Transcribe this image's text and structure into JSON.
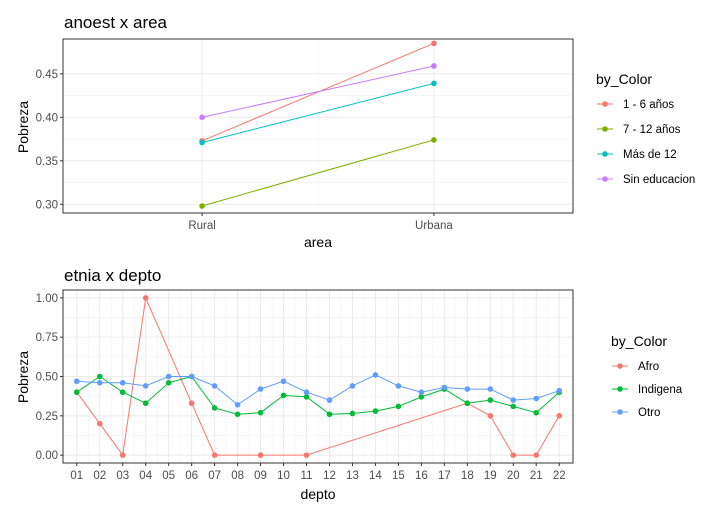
{
  "chart_data": [
    {
      "type": "line",
      "title": "anoest x area",
      "xlabel": "area",
      "ylabel": "Pobreza",
      "categories": [
        "Rural",
        "Urbana"
      ],
      "ylim": [
        0.29,
        0.49
      ],
      "yticks": [
        0.3,
        0.35,
        0.4,
        0.45
      ],
      "ytick_labels": [
        "0.30",
        "0.35",
        "0.40",
        "0.45"
      ],
      "grid": true,
      "legend_title": "by_Color",
      "legend_position": "right",
      "series": [
        {
          "name": "1 - 6 años",
          "color": "#F8766D",
          "values": [
            0.373,
            0.485
          ]
        },
        {
          "name": "7 - 12 años",
          "color": "#7CAE00",
          "values": [
            0.298,
            0.374
          ]
        },
        {
          "name": "Más de 12",
          "color": "#00BFC4",
          "values": [
            0.371,
            0.439
          ]
        },
        {
          "name": "Sin educacion",
          "color": "#C77CFF",
          "values": [
            0.4,
            0.459
          ]
        }
      ]
    },
    {
      "type": "line",
      "title": "etnia x depto",
      "xlabel": "depto",
      "ylabel": "Pobreza",
      "categories": [
        "01",
        "02",
        "03",
        "04",
        "05",
        "06",
        "07",
        "08",
        "09",
        "10",
        "11",
        "12",
        "13",
        "14",
        "15",
        "16",
        "17",
        "18",
        "19",
        "20",
        "21",
        "22"
      ],
      "ylim": [
        -0.05,
        1.05
      ],
      "yticks": [
        0,
        0.25,
        0.5,
        0.75,
        1
      ],
      "ytick_labels": [
        "0.00",
        "0.25",
        "0.50",
        "0.75",
        "1.00"
      ],
      "grid": true,
      "legend_title": "by_Color",
      "legend_position": "right",
      "series": [
        {
          "name": "Afro",
          "color": "#F8766D",
          "points": [
            [
              1,
              0.4
            ],
            [
              2,
              0.2
            ],
            [
              3,
              0.0
            ],
            [
              4,
              1.0
            ],
            [
              6,
              0.33
            ],
            [
              7,
              0.0
            ],
            [
              9,
              0.0
            ],
            [
              11,
              0.0
            ],
            [
              18,
              0.33
            ],
            [
              19,
              0.25
            ],
            [
              20,
              0.0
            ],
            [
              21,
              0.0
            ],
            [
              22,
              0.25
            ]
          ]
        },
        {
          "name": "Indigena",
          "color": "#00BA38",
          "points": [
            [
              1,
              0.4
            ],
            [
              2,
              0.5
            ],
            [
              3,
              0.4
            ],
            [
              4,
              0.33
            ],
            [
              5,
              0.46
            ],
            [
              6,
              0.5
            ],
            [
              7,
              0.3
            ],
            [
              8,
              0.26
            ],
            [
              9,
              0.27
            ],
            [
              10,
              0.38
            ],
            [
              11,
              0.37
            ],
            [
              12,
              0.26
            ],
            [
              13,
              0.265
            ],
            [
              14,
              0.28
            ],
            [
              15,
              0.31
            ],
            [
              16,
              0.37
            ],
            [
              17,
              0.42
            ],
            [
              18,
              0.33
            ],
            [
              19,
              0.35
            ],
            [
              20,
              0.31
            ],
            [
              21,
              0.27
            ],
            [
              22,
              0.4
            ]
          ]
        },
        {
          "name": "Otro",
          "color": "#619CFF",
          "points": [
            [
              1,
              0.47
            ],
            [
              2,
              0.46
            ],
            [
              3,
              0.46
            ],
            [
              4,
              0.44
            ],
            [
              5,
              0.5
            ],
            [
              6,
              0.5
            ],
            [
              7,
              0.44
            ],
            [
              8,
              0.32
            ],
            [
              9,
              0.42
            ],
            [
              10,
              0.47
            ],
            [
              11,
              0.4
            ],
            [
              12,
              0.35
            ],
            [
              13,
              0.44
            ],
            [
              14,
              0.51
            ],
            [
              15,
              0.44
            ],
            [
              16,
              0.4
            ],
            [
              17,
              0.43
            ],
            [
              18,
              0.42
            ],
            [
              19,
              0.42
            ],
            [
              20,
              0.35
            ],
            [
              21,
              0.36
            ],
            [
              22,
              0.41
            ]
          ]
        }
      ]
    }
  ]
}
